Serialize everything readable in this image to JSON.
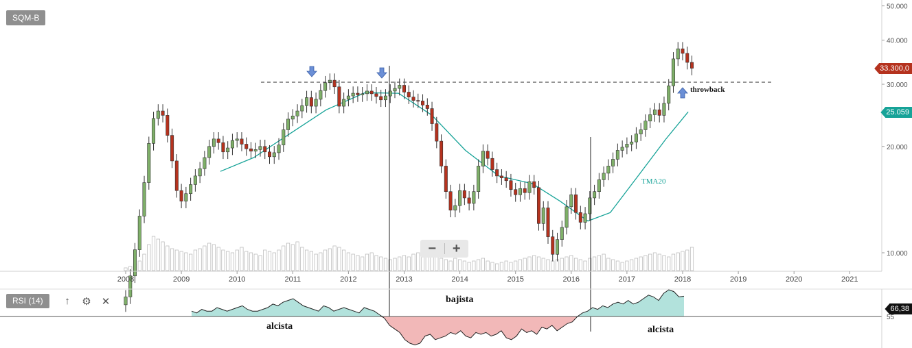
{
  "symbol": "SQM-B",
  "rsi_label": "RSI (14)",
  "toolbar": {
    "up_icon": "↑",
    "settings_icon": "⚙",
    "close_icon": "✕"
  },
  "zoom": {
    "minus": "−",
    "plus": "+"
  },
  "colors": {
    "up": "#7fb069",
    "down": "#b5321e",
    "tma": "#17a398",
    "rsi_line": "#222222",
    "rsi_up_fill": "#b2e2dc",
    "rsi_down_fill": "#f2b8b8",
    "arrow": "#6b8fd6"
  },
  "price_tags": {
    "last": "33.300,0",
    "tma": "25.059",
    "rsi": "66,38"
  },
  "annotations": {
    "throwback": "throwback",
    "tma20": "TMA20",
    "bajista": "bajista",
    "alcista_left": "alcista",
    "alcista_right": "alcista",
    "rsi_level": "55"
  },
  "chart_data": {
    "type": "candlestick",
    "title": "SQM-B",
    "y_scale": "log",
    "y_ticks": [
      "50.000",
      "40.000",
      "30.000",
      "20.000",
      "10.000"
    ],
    "x_ticks": [
      "2008",
      "2009",
      "2010",
      "2011",
      "2012",
      "2013",
      "2014",
      "2015",
      "2016",
      "2017",
      "2018",
      "2019",
      "2020",
      "2021"
    ],
    "resistance_level": 30400,
    "series": [
      {
        "name": "TMA20",
        "values": [
          {
            "date": "2009.7",
            "value": 17000
          },
          {
            "date": "2010.3",
            "value": 18600
          },
          {
            "date": "2011.0",
            "value": 22000
          },
          {
            "date": "2011.6",
            "value": 25400
          },
          {
            "date": "2012.3",
            "value": 28400
          },
          {
            "date": "2012.9",
            "value": 28300
          },
          {
            "date": "2013.5",
            "value": 24500
          },
          {
            "date": "2014.1",
            "value": 19500
          },
          {
            "date": "2014.7",
            "value": 16500
          },
          {
            "date": "2015.3",
            "value": 15700
          },
          {
            "date": "2015.8",
            "value": 14000
          },
          {
            "date": "2016.3",
            "value": 12300
          },
          {
            "date": "2016.7",
            "value": 13000
          },
          {
            "date": "2017.2",
            "value": 16500
          },
          {
            "date": "2017.7",
            "value": 21000
          },
          {
            "date": "2018.1",
            "value": 25059
          }
        ]
      }
    ],
    "volume_note": "monthly volume histogram",
    "rsi": {
      "period": 14,
      "level": 55,
      "last": 66.38
    }
  }
}
